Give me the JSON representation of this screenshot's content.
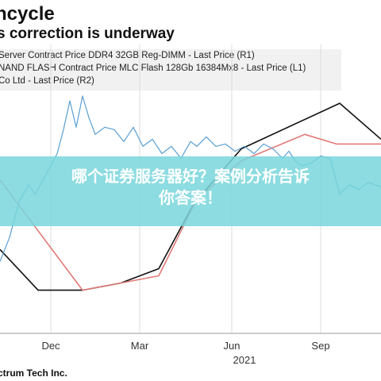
{
  "header": {
    "title": "ncycle",
    "subtitle": "s correction is underway"
  },
  "legend": {
    "items": [
      "Server Contract Price DDR4 32GB Reg-DIMM - Last Price (R1)",
      "NAND FLASH Contract Price MLC Flash 128Gb 16384Mx8 - Last Price (L1)",
      "Co Ltd - Last Price (R2)"
    ]
  },
  "source": "ctrum Tech Inc.",
  "banner": {
    "line1": "哪个证券服务器好？案例分析告诉",
    "line2": "你答案！"
  },
  "chart_data": {
    "type": "line",
    "xlabel": "",
    "ylabel": "",
    "x_ticks": [
      "Dec",
      "Mar",
      "Jun",
      "Sep"
    ],
    "x_year_label": "2021",
    "grid": "vertical",
    "x_domain": [
      0,
      12
    ],
    "y_domain": [
      0,
      100
    ],
    "series": [
      {
        "color": "#111111",
        "x": [
          0,
          1.2,
          2.6,
          3.8,
          5.0,
          6.1,
          7.6,
          10.7,
          12.0
        ],
        "y": [
          35,
          18,
          18,
          21,
          27,
          54,
          77,
          96,
          81
        ]
      },
      {
        "color": "#e07b78",
        "x": [
          0,
          2.6,
          5.0,
          6.2,
          7.6,
          9.6,
          10.6,
          12.0
        ],
        "y": [
          64,
          18,
          24,
          56,
          72,
          83,
          79,
          79
        ]
      },
      {
        "color": "#5a9fd2",
        "x": [
          0,
          0.3,
          0.6,
          0.9,
          1.1,
          1.4,
          1.8,
          2.0,
          2.2,
          2.4,
          2.6,
          2.8,
          3.0,
          3.3,
          3.6,
          3.9,
          4.2,
          4.5,
          4.8,
          5.1,
          5.4,
          5.7,
          6.0,
          6.2,
          6.5,
          6.8,
          7.1,
          7.4,
          7.7,
          8.0,
          8.3,
          8.6,
          8.9,
          9.1,
          9.3,
          9.5,
          9.8,
          10.1,
          10.4,
          10.7,
          11.0,
          11.3,
          11.6,
          12.0
        ],
        "y": [
          30,
          40,
          55,
          62,
          58,
          65,
          75,
          85,
          97,
          86,
          99,
          90,
          83,
          86,
          85,
          80,
          86,
          78,
          81,
          75,
          78,
          73,
          80,
          78,
          82,
          78,
          79,
          76,
          78,
          75,
          79,
          77,
          73,
          76,
          72,
          70,
          71,
          74,
          73,
          58,
          62,
          60,
          63,
          61
        ]
      }
    ]
  }
}
